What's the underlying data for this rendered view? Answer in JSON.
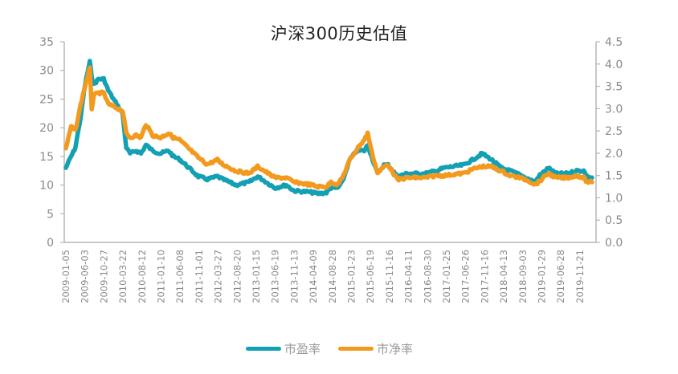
{
  "chart_data": {
    "type": "line",
    "title": "沪深300历史估值",
    "xlabel": "",
    "ylabel_left": "",
    "ylabel_right": "",
    "ylim_left": [
      0,
      35
    ],
    "ylim_right": [
      0,
      4.5
    ],
    "yticks_left": [
      "0",
      "5",
      "10",
      "15",
      "20",
      "25",
      "30",
      "35"
    ],
    "yticks_right": [
      "0.0",
      "0.5",
      "1.0",
      "1.5",
      "2.0",
      "2.5",
      "3.0",
      "3.5",
      "4.0",
      "4.5"
    ],
    "xticks": [
      "2009-01-05",
      "2009-06-03",
      "2009-10-27",
      "2010-03-22",
      "2010-08-12",
      "2011-01-10",
      "2011-06-08",
      "2011-11-01",
      "2012-03-27",
      "2012-08-20",
      "2013-01-15",
      "2013-06-19",
      "2013-11-13",
      "2014-04-09",
      "2014-08-28",
      "2015-01-23",
      "2015-06-19",
      "2015-11-16",
      "2016-04-11",
      "2016-08-30",
      "2017-01-25",
      "2017-06-26",
      "2017-11-16",
      "2018-04-13",
      "2018-09-03",
      "2019-01-29",
      "2019-06-28",
      "2019-11-21"
    ],
    "grid": false,
    "legend_position": "bottom",
    "series": [
      {
        "name": "市盈率",
        "axis": "left",
        "color": "#14a0b4",
        "x": [
          "2009-01-05",
          "2009-02-15",
          "2009-03-20",
          "2009-05-01",
          "2009-06-03",
          "2009-07-10",
          "2009-07-25",
          "2009-08-10",
          "2009-09-15",
          "2009-10-27",
          "2009-12-01",
          "2010-01-10",
          "2010-03-22",
          "2010-04-20",
          "2010-05-20",
          "2010-07-05",
          "2010-08-12",
          "2010-09-20",
          "2010-11-10",
          "2011-01-10",
          "2011-03-15",
          "2011-04-20",
          "2011-06-08",
          "2011-08-20",
          "2011-11-01",
          "2012-01-10",
          "2012-03-27",
          "2012-05-10",
          "2012-08-20",
          "2012-11-30",
          "2013-02-05",
          "2013-06-19",
          "2013-09-15",
          "2013-11-13",
          "2014-03-10",
          "2014-05-20",
          "2014-07-25",
          "2014-08-28",
          "2014-10-20",
          "2014-11-25",
          "2015-01-23",
          "2015-03-20",
          "2015-05-15",
          "2015-06-10",
          "2015-07-10",
          "2015-08-26",
          "2015-10-15",
          "2015-11-16",
          "2016-01-28",
          "2016-04-11",
          "2016-08-30",
          "2016-11-30",
          "2017-01-25",
          "2017-06-26",
          "2017-09-10",
          "2017-11-16",
          "2018-01-24",
          "2018-04-13",
          "2018-06-20",
          "2018-09-03",
          "2018-10-30",
          "2019-01-03",
          "2019-01-29",
          "2019-04-15",
          "2019-06-10",
          "2019-06-28",
          "2019-09-10",
          "2019-11-21",
          "2020-01-15",
          "2020-02-10",
          "2020-03-20"
        ],
        "values": [
          13,
          15,
          16.5,
          22,
          27.5,
          31.5,
          29,
          27.5,
          28.5,
          28.5,
          26.5,
          25,
          22.5,
          16.5,
          15.5,
          16,
          15.5,
          17,
          16,
          15.5,
          16,
          15,
          14.5,
          13,
          11.5,
          11,
          11.5,
          11,
          10,
          10.5,
          11.5,
          9.5,
          10,
          9,
          8.8,
          8.5,
          8.7,
          9.5,
          9.5,
          10.5,
          14.5,
          16,
          16,
          17,
          15,
          12,
          13.5,
          13.5,
          11.5,
          12,
          12,
          12.5,
          13,
          13.5,
          14.5,
          15.5,
          14.5,
          13,
          12.5,
          11.8,
          11.2,
          10.5,
          11.5,
          13,
          12,
          12,
          12,
          12.5,
          12.5,
          11.5,
          11.3
        ]
      },
      {
        "name": "市净率",
        "axis": "right",
        "color": "#f39a1e",
        "x": [
          "2009-01-05",
          "2009-02-15",
          "2009-03-20",
          "2009-05-01",
          "2009-06-03",
          "2009-07-10",
          "2009-07-25",
          "2009-08-10",
          "2009-09-15",
          "2009-10-27",
          "2009-12-01",
          "2010-01-10",
          "2010-03-22",
          "2010-04-20",
          "2010-05-20",
          "2010-07-05",
          "2010-08-12",
          "2010-09-20",
          "2010-11-10",
          "2011-01-10",
          "2011-03-15",
          "2011-04-20",
          "2011-06-08",
          "2011-08-20",
          "2011-11-01",
          "2012-01-10",
          "2012-03-27",
          "2012-05-10",
          "2012-08-20",
          "2012-11-30",
          "2013-02-05",
          "2013-06-19",
          "2013-09-15",
          "2013-11-13",
          "2014-03-10",
          "2014-05-20",
          "2014-07-25",
          "2014-08-28",
          "2014-10-20",
          "2014-11-25",
          "2015-01-23",
          "2015-03-20",
          "2015-05-15",
          "2015-06-10",
          "2015-07-10",
          "2015-08-26",
          "2015-10-15",
          "2015-11-16",
          "2016-01-28",
          "2016-04-11",
          "2016-08-30",
          "2016-11-30",
          "2017-01-25",
          "2017-06-26",
          "2017-09-10",
          "2017-11-16",
          "2018-01-24",
          "2018-04-13",
          "2018-06-20",
          "2018-09-03",
          "2018-10-30",
          "2019-01-03",
          "2019-01-29",
          "2019-04-15",
          "2019-06-10",
          "2019-06-28",
          "2019-09-10",
          "2019-11-21",
          "2020-01-15",
          "2020-02-10",
          "2020-03-20"
        ],
        "values": [
          2.1,
          2.6,
          2.5,
          3.1,
          3.5,
          3.9,
          3.0,
          3.3,
          3.35,
          3.35,
          3.1,
          3.05,
          2.95,
          2.45,
          2.35,
          2.4,
          2.35,
          2.65,
          2.4,
          2.35,
          2.45,
          2.35,
          2.3,
          2.1,
          1.9,
          1.75,
          1.85,
          1.75,
          1.6,
          1.55,
          1.7,
          1.45,
          1.45,
          1.35,
          1.3,
          1.25,
          1.25,
          1.35,
          1.3,
          1.45,
          1.85,
          2.1,
          2.3,
          2.45,
          2.05,
          1.55,
          1.7,
          1.75,
          1.4,
          1.45,
          1.45,
          1.5,
          1.5,
          1.55,
          1.65,
          1.7,
          1.7,
          1.6,
          1.5,
          1.45,
          1.4,
          1.3,
          1.35,
          1.55,
          1.45,
          1.45,
          1.45,
          1.5,
          1.45,
          1.35,
          1.35
        ]
      }
    ]
  },
  "legend": [
    {
      "label": "市盈率",
      "color": "#14a0b4"
    },
    {
      "label": "市净率",
      "color": "#f39a1e"
    }
  ]
}
